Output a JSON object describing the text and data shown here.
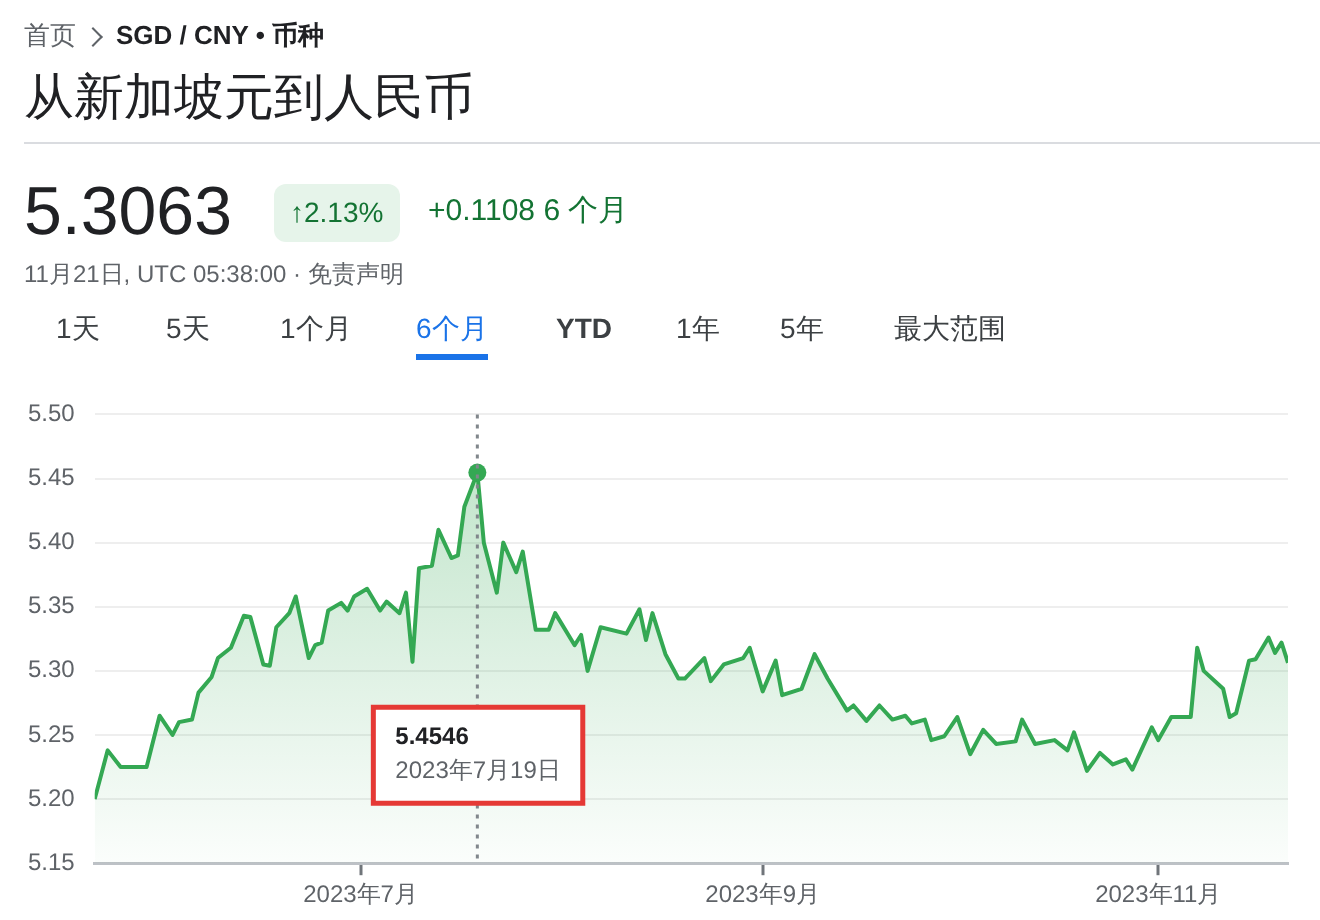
{
  "chart_data": {
    "type": "area",
    "title": "从新加坡元到人民币",
    "annotations": [
      "首页",
      "SGD / CNY • 币种",
      "5.3063",
      "↑2.13%",
      "+0.1108 6 个月",
      "11月21日, UTC 05:38:00 · 免责声明",
      "1天",
      "5天",
      "1个月",
      "6个月",
      "YTD",
      "1年",
      "5年",
      "最大范围",
      "5.4546",
      "2023年7月19日"
    ],
    "x": [
      "2023-05-21",
      "2023-05-23",
      "2023-05-25",
      "2023-05-29",
      "2023-05-31",
      "2023-06-02",
      "2023-06-03",
      "2023-06-05",
      "2023-06-06",
      "2023-06-08",
      "2023-06-09",
      "2023-06-11",
      "2023-06-13",
      "2023-06-14",
      "2023-06-16",
      "2023-06-17",
      "2023-06-18",
      "2023-06-20",
      "2023-06-21",
      "2023-06-23",
      "2023-06-24",
      "2023-06-25",
      "2023-06-26",
      "2023-06-28",
      "2023-06-29",
      "2023-06-30",
      "2023-07-02",
      "2023-07-04",
      "2023-07-05",
      "2023-07-07",
      "2023-07-08",
      "2023-07-09",
      "2023-07-10",
      "2023-07-12",
      "2023-07-13",
      "2023-07-15",
      "2023-07-16",
      "2023-07-17",
      "2023-07-19",
      "2023-07-20",
      "2023-07-22",
      "2023-07-23",
      "2023-07-25",
      "2023-07-26",
      "2023-07-28",
      "2023-07-30",
      "2023-07-31",
      "2023-08-03",
      "2023-08-04",
      "2023-08-05",
      "2023-08-07",
      "2023-08-11",
      "2023-08-13",
      "2023-08-14",
      "2023-08-15",
      "2023-08-17",
      "2023-08-19",
      "2023-08-20",
      "2023-08-23",
      "2023-08-24",
      "2023-08-26",
      "2023-08-29",
      "2023-08-30",
      "2023-09-01",
      "2023-09-03",
      "2023-09-04",
      "2023-09-07",
      "2023-09-09",
      "2023-09-11",
      "2023-09-14",
      "2023-09-15",
      "2023-09-17",
      "2023-09-19",
      "2023-09-21",
      "2023-09-23",
      "2023-09-24",
      "2023-09-26",
      "2023-09-27",
      "2023-09-29",
      "2023-10-01",
      "2023-10-03",
      "2023-10-05",
      "2023-10-07",
      "2023-10-10",
      "2023-10-11",
      "2023-10-13",
      "2023-10-16",
      "2023-10-18",
      "2023-10-19",
      "2023-10-21",
      "2023-10-23",
      "2023-10-25",
      "2023-10-27",
      "2023-10-28",
      "2023-10-31",
      "2023-11-01",
      "2023-11-03",
      "2023-11-06",
      "2023-11-07",
      "2023-11-08",
      "2023-11-11",
      "2023-11-12",
      "2023-11-13",
      "2023-11-15",
      "2023-11-16",
      "2023-11-18",
      "2023-11-19",
      "2023-11-20",
      "2023-11-21"
    ],
    "series": [
      {
        "color": "#34a853",
        "values": [
          5.2,
          5.238,
          5.225,
          5.225,
          5.265,
          5.25,
          5.26,
          5.262,
          5.283,
          5.295,
          5.31,
          5.318,
          5.343,
          5.342,
          5.305,
          5.304,
          5.334,
          5.345,
          5.358,
          5.31,
          5.32,
          5.322,
          5.347,
          5.353,
          5.347,
          5.358,
          5.364,
          5.347,
          5.354,
          5.345,
          5.361,
          5.307,
          5.38,
          5.382,
          5.41,
          5.388,
          5.39,
          5.428,
          5.4546,
          5.4,
          5.361,
          5.4,
          5.377,
          5.393,
          5.332,
          5.332,
          5.345,
          5.32,
          5.328,
          5.3,
          5.334,
          5.329,
          5.348,
          5.324,
          5.345,
          5.313,
          5.294,
          5.294,
          5.31,
          5.292,
          5.305,
          5.31,
          5.318,
          5.284,
          5.308,
          5.281,
          5.286,
          5.313,
          5.294,
          5.269,
          5.273,
          5.261,
          5.273,
          5.262,
          5.265,
          5.259,
          5.262,
          5.246,
          5.249,
          5.264,
          5.235,
          5.254,
          5.243,
          5.245,
          5.262,
          5.243,
          5.246,
          5.238,
          5.252,
          5.222,
          5.236,
          5.227,
          5.231,
          5.223,
          5.256,
          5.246,
          5.264,
          5.264,
          5.318,
          5.3,
          5.286,
          5.264,
          5.267,
          5.308,
          5.309,
          5.326,
          5.314,
          5.322,
          5.3063
        ]
      }
    ],
    "xlim": [
      "2023-05-21",
      "2023-11-21"
    ],
    "xticks": [
      {
        "value": "2023-07-01",
        "label": "2023年7月"
      },
      {
        "value": "2023-09-01",
        "label": "2023年9月"
      },
      {
        "value": "2023-11-01",
        "label": "2023年11月"
      }
    ],
    "ylim": [
      5.15,
      5.5
    ],
    "yticks": [
      {
        "value": 5.15,
        "label": "5.15"
      },
      {
        "value": 5.2,
        "label": "5.20"
      },
      {
        "value": 5.25,
        "label": "5.25"
      },
      {
        "value": 5.3,
        "label": "5.30"
      },
      {
        "value": 5.35,
        "label": "5.35"
      },
      {
        "value": 5.4,
        "label": "5.40"
      },
      {
        "value": 5.45,
        "label": "5.45"
      },
      {
        "value": 5.5,
        "label": "5.50"
      }
    ],
    "ref_lines": [
      {
        "axis": "x",
        "value": "2023-07-19",
        "color": "#80868b",
        "line_style": "dotted"
      }
    ],
    "grid": "y",
    "marker": "none",
    "line_style": "solid"
  }
}
